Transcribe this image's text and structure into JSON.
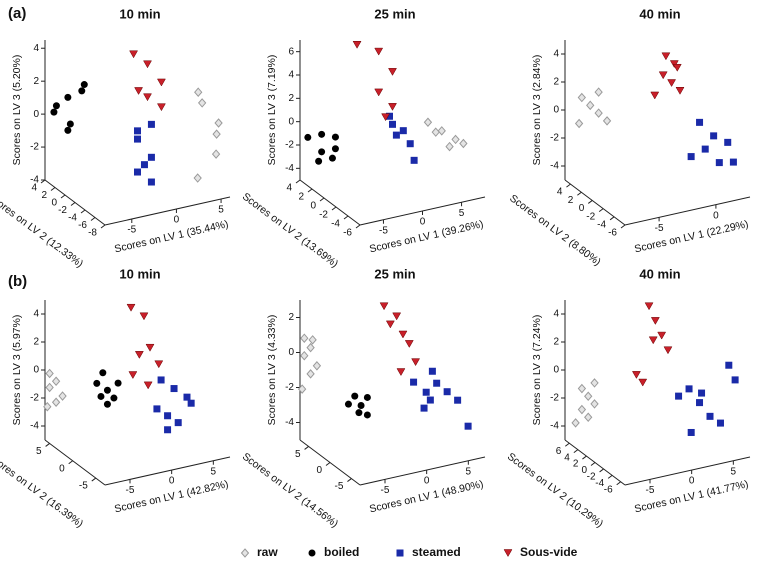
{
  "panel_labels": [
    "(a)",
    "(b)"
  ],
  "chart_data": [
    {
      "type": "scatter3d",
      "title": "10 min",
      "xlabel": "Scores on LV 1 (35.44%)",
      "ylabel": "Scores on LV 3 (5.20%)",
      "zlabel": "Scores on LV 2 (12.33%)",
      "xlim": [
        -8,
        6
      ],
      "ylim": [
        -4,
        4.5
      ],
      "zlim": [
        -8,
        4
      ],
      "xticks": [
        -5,
        0,
        5
      ],
      "yticks": [
        -4,
        -2,
        0,
        2,
        4
      ],
      "zticks": [
        4,
        2,
        0,
        -2,
        -4,
        -6,
        -8
      ],
      "series": [
        {
          "name": "raw",
          "color": "#9a9a9a",
          "x": [
            3,
            4,
            5,
            4.5,
            5,
            3.5
          ],
          "y": [
            2.5,
            1.5,
            0.5,
            0,
            -1.5,
            -3
          ],
          "z": [
            -7,
            -6,
            -7.5,
            -8,
            -7,
            -6
          ]
        },
        {
          "name": "boiled",
          "color": "#000000",
          "x": [
            -6,
            -5,
            -7,
            -6,
            -5,
            -7,
            -6
          ],
          "y": [
            1,
            1.5,
            0.5,
            -0.5,
            2,
            0,
            -1
          ],
          "z": [
            3,
            2,
            3.5,
            2.5,
            1.5,
            4,
            3
          ]
        },
        {
          "name": "steamed",
          "color": "#1a2aa8",
          "x": [
            -1,
            0,
            -1,
            0,
            -0.5,
            0,
            -1
          ],
          "y": [
            -1,
            -2,
            -3,
            -3.5,
            -2.5,
            0,
            -0.5
          ],
          "z": [
            -2,
            -3,
            -2,
            -3,
            -2.5,
            -3,
            -2
          ]
        },
        {
          "name": "Sous-vide",
          "color": "#c8202a",
          "x": [
            -2,
            -1,
            0,
            -1,
            0,
            -2
          ],
          "y": [
            4.5,
            4,
            3,
            2,
            1.5,
            2.5
          ],
          "z": [
            -3,
            -4,
            -5,
            -4,
            -5,
            -4
          ]
        }
      ]
    },
    {
      "type": "scatter3d",
      "title": "25 min",
      "xlabel": "Scores on LV 1 (39.26%)",
      "ylabel": "Scores on LV 3 (7.19%)",
      "zlabel": "Scores on LV 2 (13.69%)",
      "xlim": [
        -8,
        8
      ],
      "ylim": [
        -5,
        7
      ],
      "zlim": [
        -6,
        4
      ],
      "xticks": [
        -5,
        0,
        5
      ],
      "yticks": [
        -4,
        -2,
        0,
        2,
        4,
        6
      ],
      "zticks": [
        4,
        2,
        0,
        -2,
        -4,
        -6
      ],
      "series": [
        {
          "name": "raw",
          "color": "#9a9a9a",
          "x": [
            3,
            4,
            5,
            6,
            5,
            4
          ],
          "y": [
            1,
            0.5,
            0,
            -0.5,
            -1,
            0
          ],
          "z": [
            -3,
            -4,
            -5,
            -5,
            -4,
            -3
          ]
        },
        {
          "name": "boiled",
          "color": "#000000",
          "x": [
            -6,
            -5,
            -6,
            -5,
            -7,
            -6,
            -5
          ],
          "y": [
            -1,
            -2,
            -2.5,
            -3,
            -1.5,
            -3.5,
            -1
          ],
          "z": [
            3,
            2,
            3,
            2.5,
            4,
            3.5,
            2
          ]
        },
        {
          "name": "steamed",
          "color": "#1a2aa8",
          "x": [
            0,
            1,
            0.5,
            1.5,
            0,
            2
          ],
          "y": [
            0.5,
            0,
            -0.5,
            -1,
            1,
            -2.5
          ],
          "z": [
            -1,
            -1.5,
            -1,
            -2,
            -0.5,
            -2
          ]
        },
        {
          "name": "Sous-vide",
          "color": "#c8202a",
          "x": [
            -3,
            -1,
            0,
            -1,
            0,
            -0.5
          ],
          "y": [
            7,
            6.5,
            5,
            3,
            2,
            1
          ],
          "z": [
            1,
            0,
            -1,
            0,
            -1,
            -0.5
          ]
        }
      ]
    },
    {
      "type": "scatter3d",
      "title": "40 min",
      "xlabel": "Scores on LV 1 (22.29%)",
      "ylabel": "Scores on LV 3 (2.84%)",
      "zlabel": "Scores on LV 2 (8.80%)",
      "xlim": [
        -8,
        3
      ],
      "ylim": [
        -5,
        5
      ],
      "zlim": [
        -6,
        5
      ],
      "xticks": [
        -5,
        0
      ],
      "yticks": [
        -4,
        -2,
        0,
        2,
        4
      ],
      "zticks": [
        4,
        2,
        0,
        -2,
        -4,
        -6
      ],
      "series": [
        {
          "name": "raw",
          "color": "#9a9a9a",
          "x": [
            -7,
            -6.5,
            -6,
            -5.5,
            -7,
            -6
          ],
          "y": [
            1,
            0.5,
            0,
            -0.5,
            -1,
            1.5
          ],
          "z": [
            4,
            3.5,
            3,
            2.5,
            4.5,
            3
          ]
        },
        {
          "name": "boiled",
          "color": "#000000",
          "x": [],
          "y": [],
          "z": []
        },
        {
          "name": "steamed",
          "color": "#1a2aa8",
          "x": [
            0,
            1,
            0.5,
            2,
            1.5,
            -0.5,
            2.5
          ],
          "y": [
            0,
            -1,
            -2,
            -1.5,
            -3,
            -2.5,
            -3
          ],
          "z": [
            -3,
            -3.5,
            -3,
            -4,
            -3.5,
            -2.5,
            -4
          ]
        },
        {
          "name": "Sous-vide",
          "color": "#c8202a",
          "x": [
            -2,
            -1.5,
            -1,
            -2,
            -1.5,
            -1,
            -2.5
          ],
          "y": [
            4.5,
            4,
            3.5,
            3,
            2.5,
            2,
            1.5
          ],
          "z": [
            -1,
            -1.5,
            -1,
            -0.5,
            -1,
            -1.5,
            0
          ]
        }
      ]
    },
    {
      "type": "scatter3d",
      "title": "10 min",
      "xlabel": "Scores on LV 1 (42.82%)",
      "ylabel": "Scores on LV 3 (5.97%)",
      "zlabel": "Scores on LV 2 (16.39%)",
      "xlim": [
        -8,
        7
      ],
      "ylim": [
        -5,
        5
      ],
      "zlim": [
        -7,
        6
      ],
      "xticks": [
        -5,
        0,
        5
      ],
      "yticks": [
        -4,
        -2,
        0,
        2,
        4
      ],
      "zticks": [
        5,
        0,
        -5
      ],
      "series": [
        {
          "name": "raw",
          "color": "#9a9a9a",
          "x": [
            -8,
            -7.5,
            -8,
            -7,
            -7.5,
            -8
          ],
          "y": [
            0,
            -0.5,
            -1,
            -1.5,
            -2,
            -2.5
          ],
          "z": [
            5,
            4.5,
            5,
            4,
            4.5,
            5.5
          ]
        },
        {
          "name": "boiled",
          "color": "#000000",
          "x": [
            -4,
            -3,
            -3.5,
            -2.5,
            -3,
            -2,
            -3
          ],
          "y": [
            -0.5,
            -1,
            -1.5,
            -1.5,
            -2,
            -0.5,
            0
          ],
          "z": [
            2,
            1.5,
            2,
            1,
            1.5,
            1,
            2.5
          ]
        },
        {
          "name": "steamed",
          "color": "#1a2aa8",
          "x": [
            1,
            2,
            3,
            2,
            3.5,
            4,
            2.5,
            1.5
          ],
          "y": [
            -2,
            -2.5,
            -3,
            -3.5,
            -1,
            -1.5,
            -0.5,
            0
          ],
          "z": [
            -2,
            -2.5,
            -3,
            -2.5,
            -4,
            -4,
            -3,
            -2
          ]
        },
        {
          "name": "Sous-vide",
          "color": "#c8202a",
          "x": [
            -1,
            0,
            1,
            0,
            1.5,
            -0.5,
            0.5
          ],
          "y": [
            5,
            4.5,
            2,
            1.5,
            1,
            0,
            -0.5
          ],
          "z": [
            0,
            -1,
            -0.5,
            0,
            -1.5,
            0.5,
            -1
          ]
        }
      ]
    },
    {
      "type": "scatter3d",
      "title": "25 min",
      "xlabel": "Scores on LV 1 (48.90%)",
      "ylabel": "Scores on LV 3 (4.33%)",
      "zlabel": "Scores on LV 2 (14.56%)",
      "xlim": [
        -8,
        7
      ],
      "ylim": [
        -5,
        3
      ],
      "zlim": [
        -7,
        7
      ],
      "xticks": [
        -5,
        0,
        5
      ],
      "yticks": [
        -4,
        -2,
        0,
        2
      ],
      "zticks": [
        5,
        0,
        -5
      ],
      "series": [
        {
          "name": "raw",
          "color": "#9a9a9a",
          "x": [
            -8,
            -7.5,
            -8,
            -7,
            -7.5,
            -8,
            -7
          ],
          "y": [
            1,
            0.5,
            0,
            -0.5,
            -1,
            -2,
            0.8
          ],
          "z": [
            6,
            5.5,
            6,
            5,
            5.5,
            6.5,
            6
          ]
        },
        {
          "name": "boiled",
          "color": "#000000",
          "x": [
            -4,
            -3.5,
            -3,
            -3.5,
            -4.5,
            -3
          ],
          "y": [
            -2,
            -2.5,
            -2,
            -3,
            -2.5,
            -3
          ],
          "z": [
            2,
            1.5,
            1,
            2,
            2.5,
            1
          ]
        },
        {
          "name": "steamed",
          "color": "#1a2aa8",
          "x": [
            1,
            2,
            3,
            2.5,
            4,
            5,
            3,
            2,
            6
          ],
          "y": [
            -1,
            -1.5,
            -1,
            -2,
            -1.5,
            -2,
            -0.5,
            -2.5,
            -3.5
          ],
          "z": [
            -2,
            -3,
            -3.5,
            -3,
            -4,
            -4.5,
            -2.5,
            -2.5,
            -5
          ]
        },
        {
          "name": "Sous-vide",
          "color": "#c8202a",
          "x": [
            -1,
            0,
            -0.5,
            0.5,
            1,
            1.5,
            0
          ],
          "y": [
            3,
            2.5,
            2,
            1.5,
            1,
            0,
            -0.5
          ],
          "z": [
            1,
            0,
            0.5,
            -0.5,
            -1,
            -1.5,
            -1
          ]
        }
      ]
    },
    {
      "type": "scatter3d",
      "title": "40 min",
      "xlabel": "Scores on LV 1 (41.77%)",
      "ylabel": "Scores on LV 3 (7.24%)",
      "zlabel": "Scores on LV 2 (10.29%)",
      "xlim": [
        -8,
        7
      ],
      "ylim": [
        -5,
        5
      ],
      "zlim": [
        -7,
        7
      ],
      "xticks": [
        -5,
        0,
        5
      ],
      "yticks": [
        -4,
        -2,
        0,
        2,
        4
      ],
      "zticks": [
        6,
        4,
        2,
        0,
        -2,
        -4,
        -6
      ],
      "series": [
        {
          "name": "raw",
          "color": "#9a9a9a",
          "x": [
            -7,
            -6.5,
            -6,
            -7,
            -6.5,
            -7.5,
            -6
          ],
          "y": [
            -1,
            -1.5,
            -2,
            -2.5,
            -3,
            -3.5,
            -0.5
          ],
          "z": [
            5,
            4.5,
            4,
            5,
            4.5,
            5.5,
            4
          ]
        },
        {
          "name": "boiled",
          "color": "#000000",
          "x": [],
          "y": [],
          "z": []
        },
        {
          "name": "steamed",
          "color": "#1a2aa8",
          "x": [
            1,
            2,
            3,
            4,
            5,
            2,
            3.5,
            6,
            6.5
          ],
          "y": [
            -1,
            -0.5,
            -1.5,
            -2.5,
            -3,
            -3.5,
            -1,
            1,
            0
          ],
          "z": [
            -2,
            -2.5,
            -3,
            -3.5,
            -4,
            -3,
            -2.5,
            -4,
            -4.5
          ]
        },
        {
          "name": "Sous-vide",
          "color": "#c8202a",
          "x": [
            -1,
            -0.5,
            0,
            -0.5,
            0.5,
            -2,
            -1.5
          ],
          "y": [
            5,
            4,
            3,
            2.5,
            2,
            0,
            -0.5
          ],
          "z": [
            1,
            0.5,
            0,
            1,
            -0.5,
            2,
            1.5
          ]
        }
      ]
    }
  ]
}
